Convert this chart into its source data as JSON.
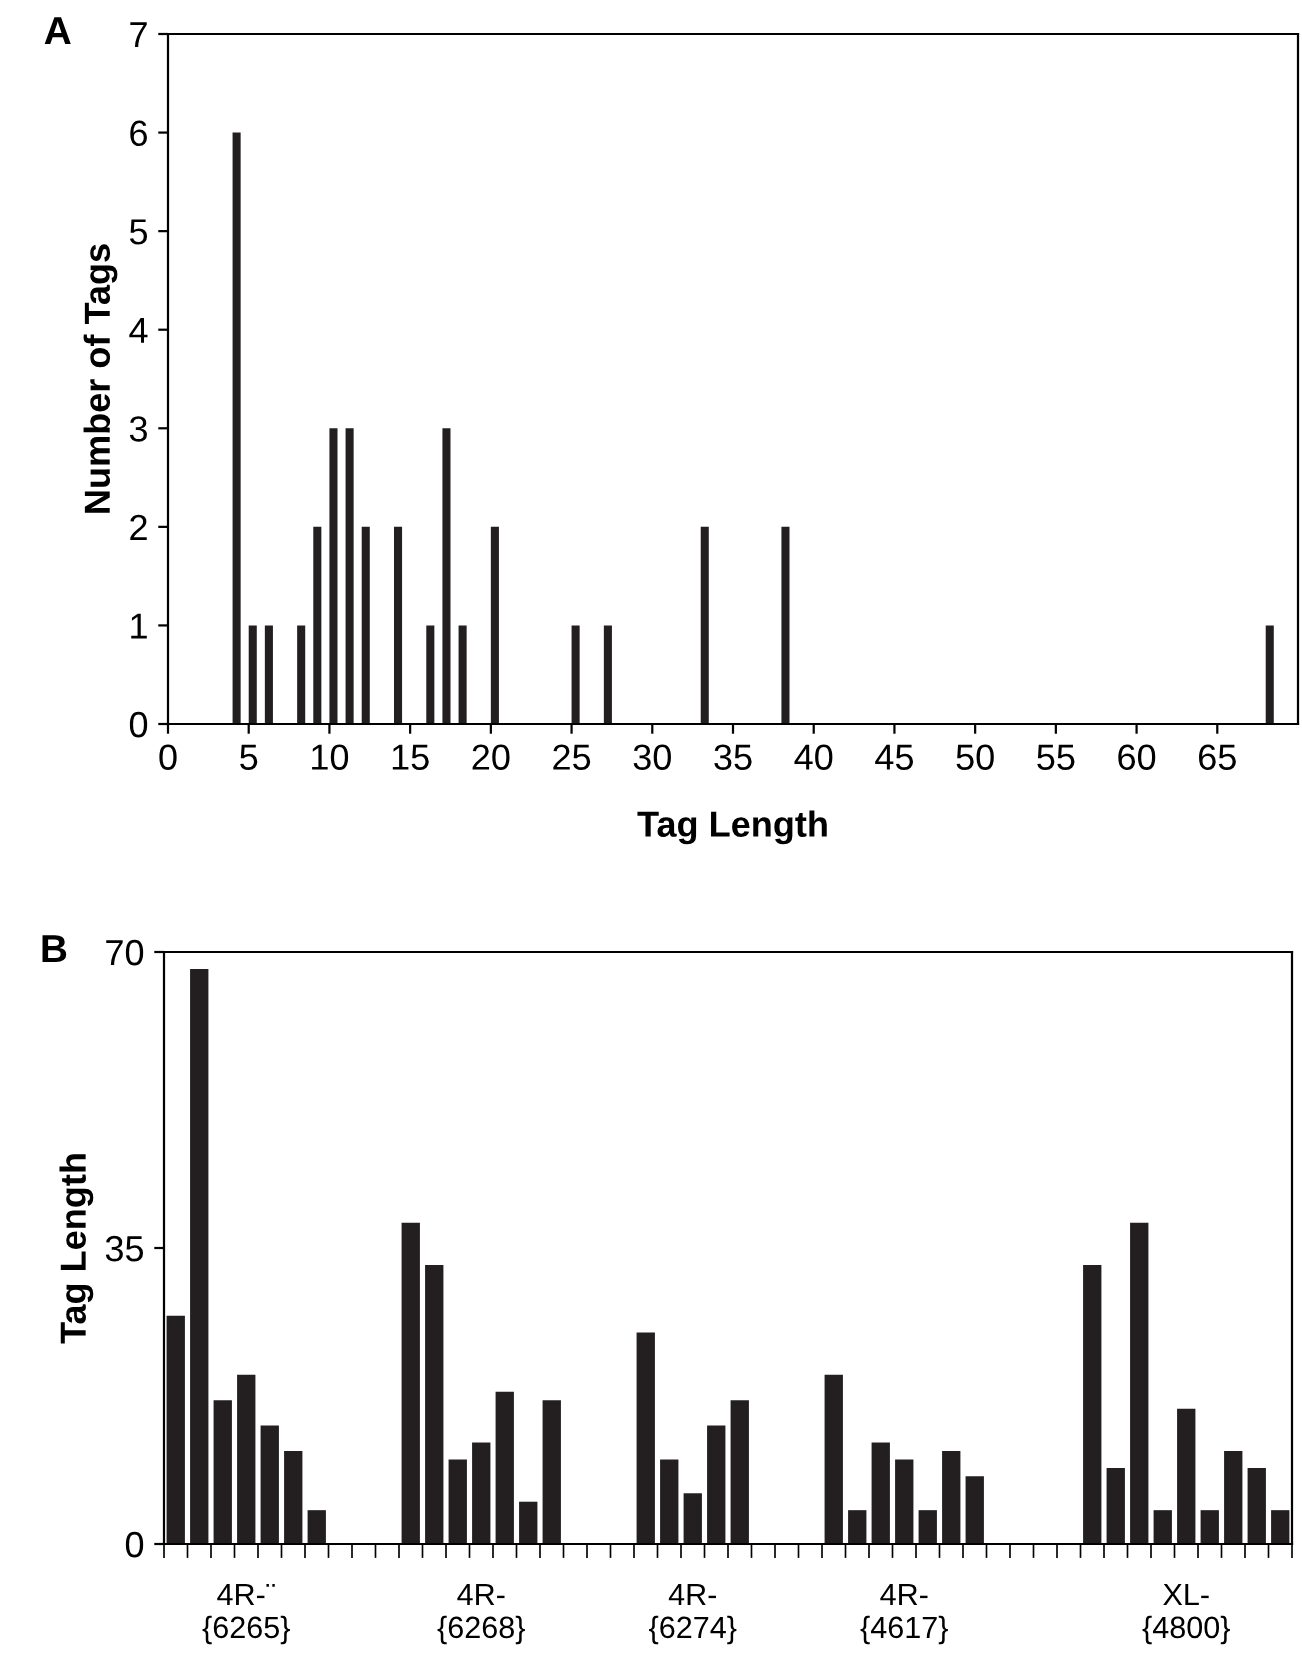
{
  "chart_data": [
    {
      "type": "bar",
      "xlabel": "Tag Length",
      "ylabel": "Number of Tags",
      "annotations": [
        "A"
      ],
      "x": [
        4,
        5,
        6,
        8,
        9,
        10,
        11,
        12,
        14,
        16,
        17,
        18,
        20,
        25,
        27,
        33,
        38,
        68
      ],
      "values": [
        6,
        1,
        1,
        1,
        2,
        3,
        3,
        2,
        2,
        1,
        3,
        1,
        2,
        1,
        1,
        2,
        2,
        1
      ],
      "color": "#231f20",
      "xlim": [
        0,
        70
      ],
      "xticks": [
        0,
        5,
        10,
        15,
        20,
        25,
        30,
        35,
        40,
        45,
        50,
        55,
        60,
        65
      ],
      "ylim": [
        0,
        7
      ],
      "yticks": [
        0,
        1,
        2,
        3,
        4,
        5,
        6,
        7
      ],
      "grid": false,
      "legend": false
    },
    {
      "type": "bar",
      "ylabel": "Tag Length",
      "annotations": [
        "B"
      ],
      "categories": [
        null,
        null,
        null,
        "4R-¨\n{6265}",
        null,
        null,
        null,
        null,
        null,
        null,
        null,
        null,
        null,
        "4R-\n{6268}",
        null,
        null,
        null,
        null,
        null,
        null,
        null,
        null,
        "4R-\n{6274}",
        null,
        null,
        null,
        null,
        null,
        null,
        null,
        null,
        "4R-\n{4617}",
        null,
        null,
        null,
        null,
        null,
        null,
        null,
        null,
        null,
        null,
        null,
        "XL-\n{4800}",
        null,
        null,
        null,
        null
      ],
      "values": [
        27,
        68,
        17,
        20,
        14,
        11,
        4,
        null,
        null,
        null,
        38,
        33,
        10,
        12,
        18,
        5,
        17,
        null,
        null,
        null,
        25,
        10,
        6,
        14,
        17,
        null,
        null,
        null,
        20,
        4,
        12,
        10,
        4,
        11,
        8,
        null,
        null,
        null,
        null,
        33,
        9,
        38,
        4,
        16,
        4,
        11,
        9,
        4
      ],
      "color": "#231f20",
      "ylim": [
        0,
        70
      ],
      "yticks": [
        0,
        35,
        70
      ],
      "grid": false,
      "legend": false
    }
  ]
}
